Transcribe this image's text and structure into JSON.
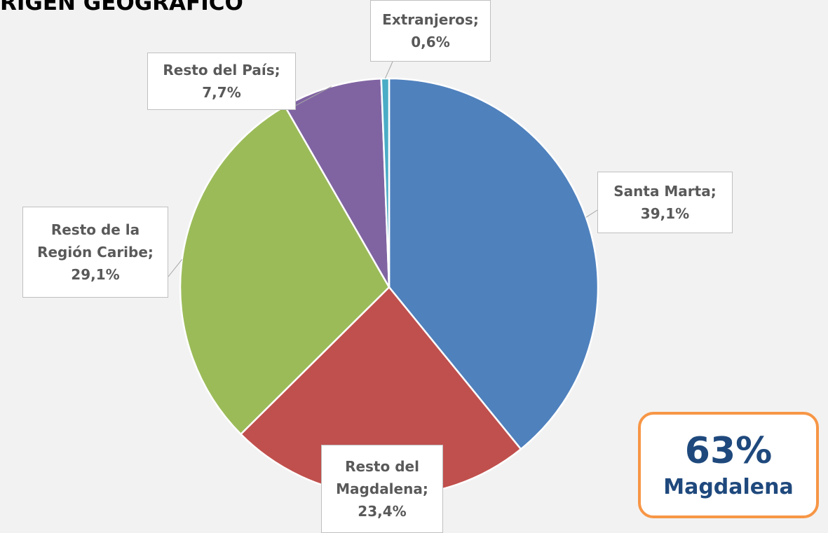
{
  "chart_data": {
    "type": "pie",
    "title": "RIGEN GEOGRAFICO",
    "categories": [
      "Santa Marta;",
      "Resto del Magdalena;",
      "Resto de la Región Caribe;",
      "Resto del País;",
      "Extranjeros;"
    ],
    "values": [
      39.1,
      23.4,
      29.1,
      7.7,
      0.6
    ],
    "value_labels": [
      "39,1%",
      "23,4%",
      "29,1%",
      "7,7%",
      "0,6%"
    ],
    "colors": [
      "#4f81bd",
      "#c0504d",
      "#9bbb59",
      "#8064a2",
      "#4bacc6"
    ],
    "annotation": {
      "value": "63%",
      "text": "Magdalena"
    }
  }
}
